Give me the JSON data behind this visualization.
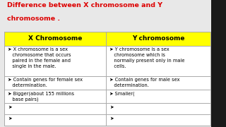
{
  "title_line1": "Difference between X chromosome and Y",
  "title_line2": "chromosome .",
  "title_color": "#dd0000",
  "bg_color": "#e8e8e8",
  "header_bg": "#ffff00",
  "col1_header": "X Chromosome",
  "col2_header": "Y chromosome",
  "col1_rows": [
    "➤ X chromosome is a sex\n   chromosome that occurs\n   paired in the female and\n   single in the male.",
    "➤ Contain genes for female sex\n   determination.",
    "➤ Bigger(about 155 millions\n   base pairs)",
    "➤",
    "➤"
  ],
  "col2_rows": [
    "➤ Y chromosome is a sex\n   chromosome which is\n   normally present only in male\n   cells.",
    "➤ Contain genes for male sex\n   determination.",
    "➤ Smaller(",
    "➤",
    "➤"
  ],
  "border_color": "#aaaaaa",
  "text_color": "#000000",
  "font_size_title": 6.8,
  "font_size_header": 6.5,
  "font_size_body": 4.8,
  "table_row_color": "#f5f5f5"
}
